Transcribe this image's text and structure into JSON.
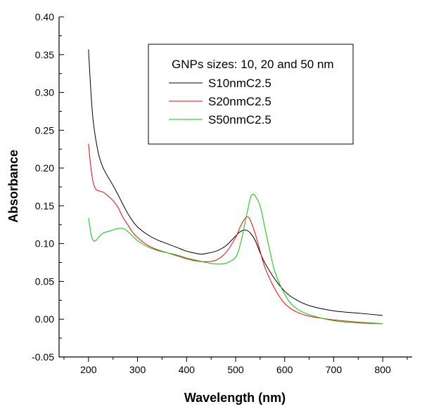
{
  "chart_data": {
    "type": "line",
    "title": "",
    "xlabel": "Wavelength (nm)",
    "ylabel": "Absorbance",
    "xlim": [
      140,
      860
    ],
    "ylim": [
      -0.05,
      0.4
    ],
    "x_ticks": [
      200,
      300,
      400,
      500,
      600,
      700,
      800
    ],
    "x_tick_labels": [
      "200",
      "300",
      "400",
      "500",
      "600",
      "700",
      "800"
    ],
    "y_ticks": [
      -0.05,
      0.0,
      0.05,
      0.1,
      0.15,
      0.2,
      0.25,
      0.3,
      0.35,
      0.4
    ],
    "y_tick_labels": [
      "-0.05",
      "0.00",
      "0.05",
      "0.10",
      "0.15",
      "0.20",
      "0.25",
      "0.30",
      "0.35",
      "0.40"
    ],
    "grid": false,
    "legend": {
      "title": "GNPs sizes: 10, 20 and 50 nm",
      "placement": "top-right"
    },
    "series": [
      {
        "name": "S10nmC2.5",
        "color": "#000000",
        "x": [
          200,
          205,
          210,
          220,
          230,
          240,
          250,
          260,
          270,
          280,
          290,
          300,
          320,
          340,
          360,
          380,
          400,
          420,
          430,
          440,
          460,
          480,
          500,
          510,
          520,
          530,
          540,
          550,
          560,
          580,
          600,
          620,
          650,
          700,
          750,
          800
        ],
        "y": [
          0.357,
          0.3,
          0.26,
          0.22,
          0.2,
          0.188,
          0.177,
          0.165,
          0.152,
          0.14,
          0.13,
          0.122,
          0.112,
          0.105,
          0.1,
          0.095,
          0.09,
          0.087,
          0.086,
          0.087,
          0.09,
          0.097,
          0.11,
          0.116,
          0.118,
          0.114,
          0.104,
          0.088,
          0.074,
          0.053,
          0.037,
          0.027,
          0.018,
          0.011,
          0.008,
          0.005
        ]
      },
      {
        "name": "S20nmC2.5",
        "color": "#ff0000",
        "x": [
          200,
          205,
          210,
          215,
          220,
          230,
          240,
          250,
          260,
          270,
          280,
          290,
          300,
          320,
          340,
          360,
          380,
          400,
          420,
          440,
          460,
          480,
          500,
          510,
          520,
          525,
          530,
          540,
          550,
          560,
          580,
          600,
          620,
          650,
          700,
          750,
          800
        ],
        "y": [
          0.232,
          0.2,
          0.18,
          0.172,
          0.17,
          0.168,
          0.163,
          0.157,
          0.148,
          0.135,
          0.125,
          0.115,
          0.108,
          0.098,
          0.092,
          0.088,
          0.084,
          0.08,
          0.077,
          0.076,
          0.078,
          0.088,
          0.108,
          0.123,
          0.134,
          0.135,
          0.131,
          0.113,
          0.09,
          0.068,
          0.04,
          0.021,
          0.011,
          0.004,
          -0.001,
          -0.004,
          -0.006
        ]
      },
      {
        "name": "S50nmC2.5",
        "color": "#00cc00",
        "x": [
          200,
          203,
          206,
          210,
          215,
          220,
          230,
          240,
          250,
          260,
          270,
          280,
          290,
          300,
          320,
          340,
          360,
          380,
          400,
          420,
          440,
          460,
          480,
          500,
          510,
          520,
          530,
          535,
          540,
          550,
          560,
          570,
          580,
          600,
          620,
          650,
          700,
          750,
          800
        ],
        "y": [
          0.134,
          0.122,
          0.11,
          0.104,
          0.104,
          0.108,
          0.114,
          0.116,
          0.118,
          0.12,
          0.12,
          0.116,
          0.11,
          0.104,
          0.096,
          0.091,
          0.088,
          0.085,
          0.081,
          0.078,
          0.075,
          0.073,
          0.074,
          0.082,
          0.1,
          0.13,
          0.16,
          0.165,
          0.163,
          0.15,
          0.12,
          0.09,
          0.063,
          0.033,
          0.016,
          0.006,
          -0.002,
          -0.005,
          -0.006
        ]
      }
    ]
  }
}
